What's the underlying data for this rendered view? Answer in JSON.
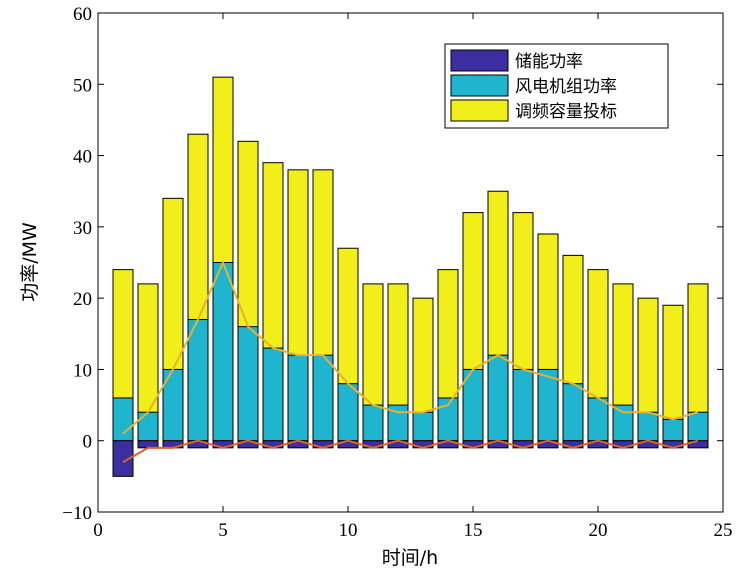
{
  "chart_data": {
    "type": "bar",
    "title": "",
    "xlabel": "时间/h",
    "ylabel": "功率/MW",
    "xlim": [
      0,
      25
    ],
    "ylim": [
      -10,
      60
    ],
    "xticks": [
      0,
      5,
      10,
      15,
      20,
      25
    ],
    "yticks": [
      -10,
      0,
      10,
      20,
      30,
      40,
      50,
      60
    ],
    "grid": false,
    "legend_position": "top-right",
    "x": [
      1,
      2,
      3,
      4,
      5,
      6,
      7,
      8,
      9,
      10,
      11,
      12,
      13,
      14,
      15,
      16,
      17,
      18,
      19,
      20,
      21,
      22,
      23,
      24
    ],
    "series": [
      {
        "name": "储能功率",
        "color": "#3b2ea0",
        "values": [
          -5,
          -1,
          -1,
          -1,
          -1,
          -1,
          -1,
          -1,
          -1,
          -1,
          -1,
          -1,
          -1,
          -1,
          -1,
          -1,
          -1,
          -1,
          -1,
          -1,
          -1,
          -1,
          -1,
          -1
        ]
      },
      {
        "name": "风电机组功率",
        "color": "#1fb5cf",
        "values": [
          6,
          4,
          10,
          17,
          25,
          16,
          13,
          12,
          12,
          8,
          5,
          5,
          4,
          6,
          10,
          12,
          10,
          10,
          8,
          6,
          5,
          4,
          3,
          4
        ]
      },
      {
        "name": "调频容量投标",
        "color": "#f2ee1a",
        "values": [
          24,
          22,
          34,
          43,
          51,
          42,
          39,
          38,
          38,
          27,
          22,
          22,
          20,
          24,
          32,
          35,
          32,
          29,
          26,
          24,
          22,
          20,
          19,
          22
        ]
      }
    ],
    "lines": [
      {
        "color": "#e8b030",
        "values": [
          1,
          4,
          10,
          17,
          25,
          16,
          13,
          12,
          12,
          8,
          5,
          4,
          4,
          5,
          10,
          12,
          10,
          9,
          8,
          6,
          4,
          4,
          3,
          4
        ]
      },
      {
        "color": "#e06020",
        "values": [
          -3,
          -1,
          -1,
          0,
          -1,
          0,
          -1,
          0,
          -1,
          0,
          -1,
          0,
          -1,
          0,
          -1,
          0,
          -1,
          0,
          -1,
          0,
          -1,
          0,
          -1,
          0
        ]
      }
    ]
  }
}
